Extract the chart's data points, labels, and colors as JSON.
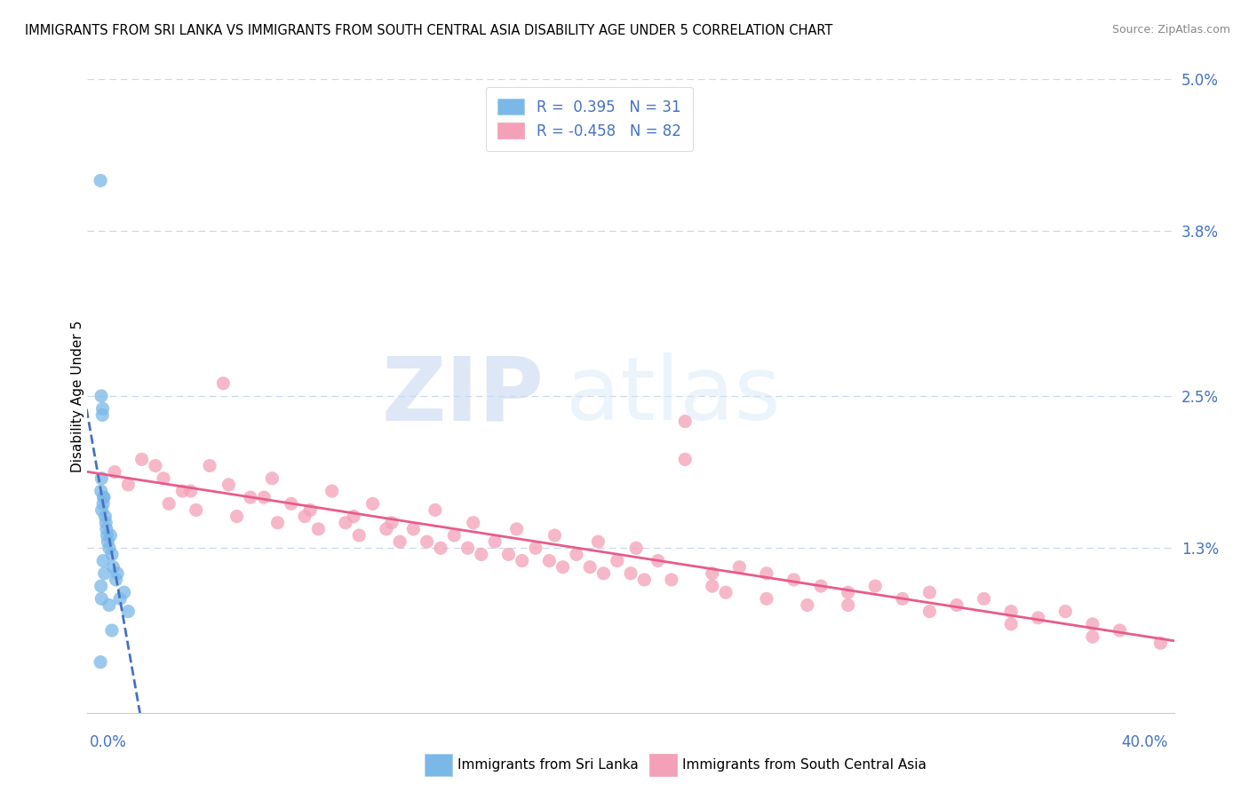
{
  "title": "IMMIGRANTS FROM SRI LANKA VS IMMIGRANTS FROM SOUTH CENTRAL ASIA DISABILITY AGE UNDER 5 CORRELATION CHART",
  "source": "Source: ZipAtlas.com",
  "ylabel": "Disability Age Under 5",
  "yticks": [
    0.0,
    1.3,
    2.5,
    3.8,
    5.0
  ],
  "xlim": [
    0.0,
    40.0
  ],
  "ylim": [
    0.0,
    5.0
  ],
  "color_blue": "#7ab8e8",
  "color_pink": "#f4a0b8",
  "color_blue_line": "#4472c4",
  "color_pink_line": "#e85b8a",
  "color_text": "#4472c4",
  "color_grid": "#c8d8ee",
  "watermark_zip": "ZIP",
  "watermark_atlas": "atlas",
  "legend_label1": "R =  0.395   N = 31",
  "legend_label2": "R = -0.458   N = 82",
  "bottom_label1": "Immigrants from Sri Lanka",
  "bottom_label2": "Immigrants from South Central Asia",
  "sri_lanka_x": [
    0.48,
    0.51,
    0.55,
    0.52,
    0.6,
    0.65,
    0.58,
    0.72,
    0.68,
    0.8,
    0.75,
    0.9,
    0.85,
    0.95,
    1.05,
    1.1,
    1.2,
    1.35,
    1.5,
    0.5,
    0.53,
    0.56,
    0.6,
    0.7,
    0.8,
    0.9,
    0.5,
    0.52,
    0.58,
    0.63,
    0.48
  ],
  "sri_lanka_y": [
    4.2,
    2.5,
    2.35,
    1.85,
    1.7,
    1.55,
    1.65,
    1.4,
    1.5,
    1.3,
    1.35,
    1.25,
    1.4,
    1.15,
    1.05,
    1.1,
    0.9,
    0.95,
    0.8,
    1.75,
    1.6,
    2.4,
    1.7,
    1.45,
    0.85,
    0.65,
    1.0,
    0.9,
    1.2,
    1.1,
    0.4
  ],
  "south_asia_x": [
    1.0,
    2.0,
    2.8,
    3.5,
    4.5,
    5.2,
    6.0,
    6.8,
    7.5,
    8.2,
    9.0,
    9.8,
    10.5,
    11.2,
    12.0,
    12.8,
    13.5,
    14.2,
    15.0,
    15.8,
    16.5,
    17.2,
    18.0,
    18.8,
    19.5,
    20.2,
    21.0,
    22.0,
    23.0,
    24.0,
    25.0,
    26.0,
    27.0,
    28.0,
    29.0,
    30.0,
    31.0,
    32.0,
    33.0,
    34.0,
    35.0,
    36.0,
    37.0,
    38.0,
    39.5,
    2.5,
    3.8,
    5.0,
    6.5,
    8.0,
    9.5,
    11.0,
    12.5,
    14.0,
    15.5,
    17.0,
    18.5,
    20.0,
    21.5,
    23.0,
    4.0,
    7.0,
    10.0,
    13.0,
    16.0,
    19.0,
    22.0,
    25.0,
    28.0,
    31.0,
    34.0,
    37.0,
    1.5,
    3.0,
    5.5,
    8.5,
    11.5,
    14.5,
    17.5,
    20.5,
    23.5,
    26.5
  ],
  "south_asia_y": [
    1.9,
    2.0,
    1.85,
    1.75,
    1.95,
    1.8,
    1.7,
    1.85,
    1.65,
    1.6,
    1.75,
    1.55,
    1.65,
    1.5,
    1.45,
    1.6,
    1.4,
    1.5,
    1.35,
    1.45,
    1.3,
    1.4,
    1.25,
    1.35,
    1.2,
    1.3,
    1.2,
    2.3,
    1.1,
    1.15,
    1.1,
    1.05,
    1.0,
    0.95,
    1.0,
    0.9,
    0.95,
    0.85,
    0.9,
    0.8,
    0.75,
    0.8,
    0.7,
    0.65,
    0.55,
    1.95,
    1.75,
    2.6,
    1.7,
    1.55,
    1.5,
    1.45,
    1.35,
    1.3,
    1.25,
    1.2,
    1.15,
    1.1,
    1.05,
    1.0,
    1.6,
    1.5,
    1.4,
    1.3,
    1.2,
    1.1,
    2.0,
    0.9,
    0.85,
    0.8,
    0.7,
    0.6,
    1.8,
    1.65,
    1.55,
    1.45,
    1.35,
    1.25,
    1.15,
    1.05,
    0.95,
    0.85
  ]
}
